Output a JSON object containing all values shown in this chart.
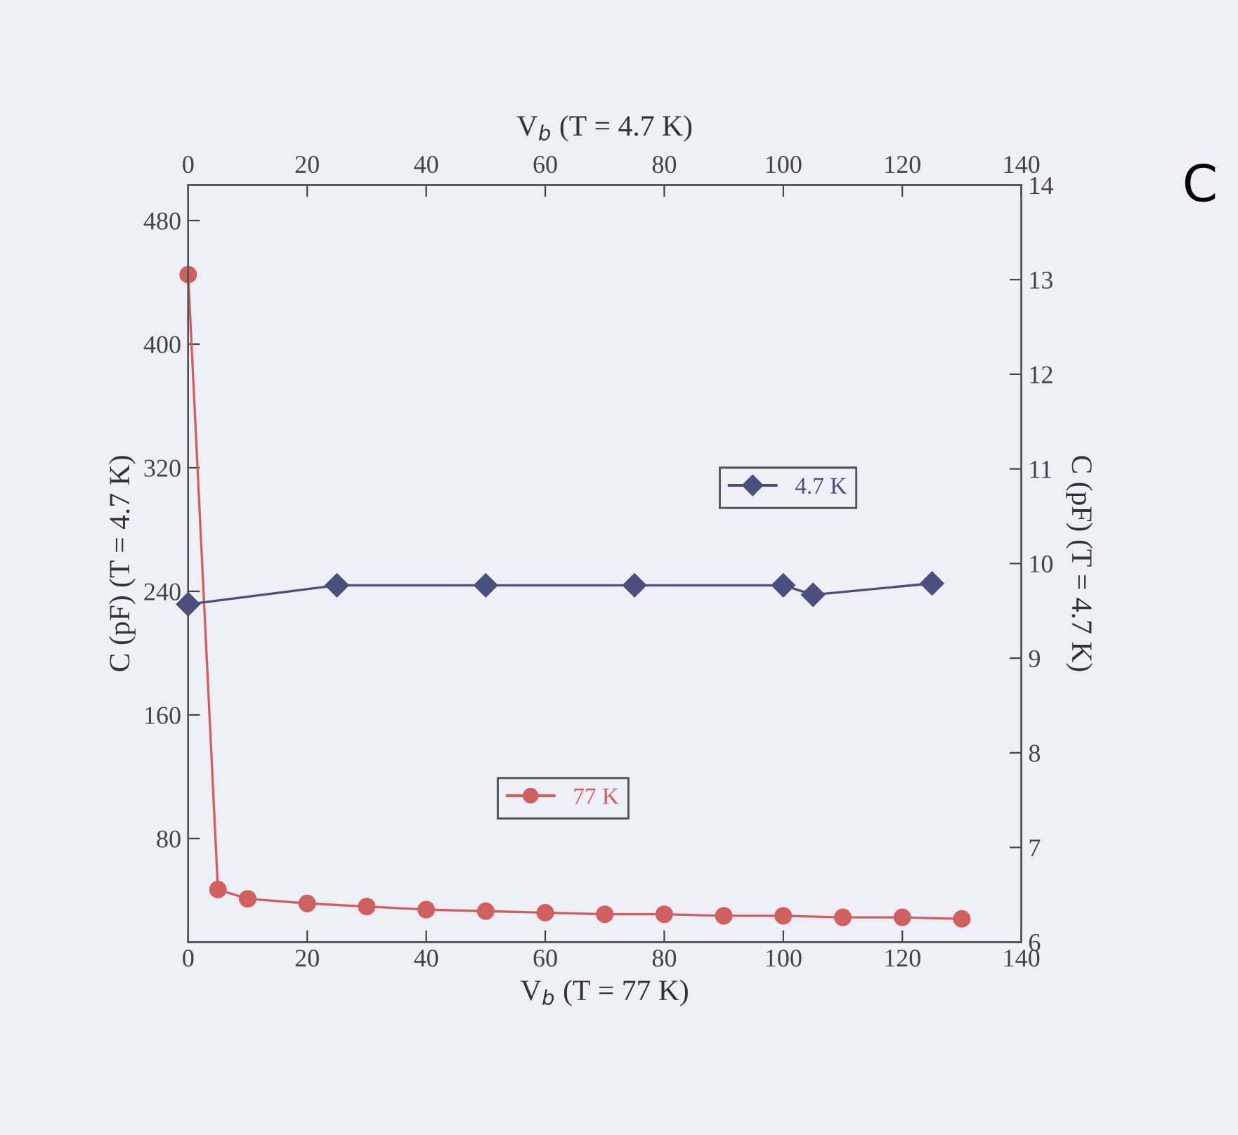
{
  "chart_data": {
    "type": "line",
    "xlabel": "V$_{b}$ (T = 77 K)",
    "x2label": "V$_{b}$ (T = 4.7 K)",
    "ylabel": "C (pF) (T = 4.7 K)",
    "y2label": "C (pF) (T = 4.7 K)",
    "xlim": [
      0,
      140
    ],
    "xticks": [
      0,
      20,
      40,
      60,
      80,
      100,
      120,
      140
    ],
    "x2lim": [
      0,
      140
    ],
    "x2ticks": [
      0,
      20,
      40,
      60,
      80,
      100,
      120,
      140
    ],
    "ylim": [
      13,
      503
    ],
    "yticks": [
      80,
      160,
      240,
      320,
      400,
      480
    ],
    "y2lim": [
      6,
      14
    ],
    "y2ticks": [
      6,
      7,
      8,
      9,
      10,
      11,
      12,
      13,
      14
    ],
    "series": [
      {
        "name": "4.7 K",
        "color": "#4a4f80",
        "axis": "y2",
        "marker": "diamond",
        "x": [
          0,
          25,
          50,
          75,
          100,
          105,
          125
        ],
        "values": [
          9.57,
          9.77,
          9.77,
          9.77,
          9.77,
          9.67,
          9.79
        ]
      },
      {
        "name": "77 K",
        "color": "#d06060",
        "marker": "circle",
        "x": [
          0,
          5,
          10,
          20,
          30,
          40,
          50,
          60,
          70,
          80,
          90,
          100,
          110,
          120,
          130
        ],
        "values": [
          445,
          47,
          41,
          38,
          36,
          34,
          33,
          32,
          31,
          31,
          30,
          30,
          29,
          29,
          28
        ]
      }
    ],
    "legend": "center",
    "line_style": "solid",
    "grid": false,
    "annotations": [
      "C"
    ]
  }
}
